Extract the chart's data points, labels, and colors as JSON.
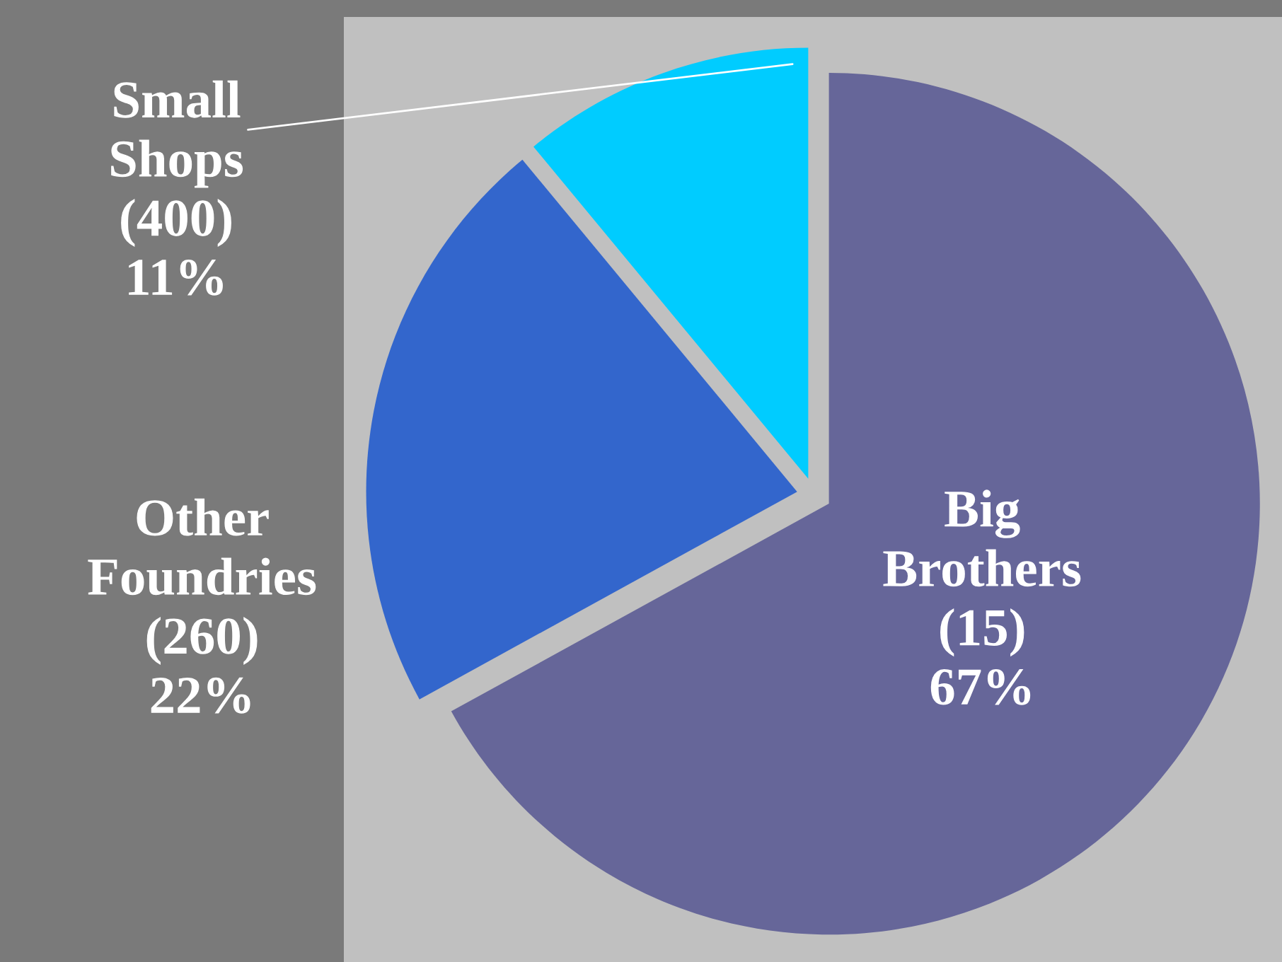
{
  "chart_data": {
    "type": "pie",
    "categories": [
      "Big Brothers",
      "Other Foundries",
      "Small Shops"
    ],
    "values": [
      67,
      22,
      11
    ],
    "colors": [
      "#666699",
      "#3366cc",
      "#00ccff"
    ],
    "value_labels": [
      "(15)\n67%",
      "(260)\n22%",
      "(400)\n11%"
    ],
    "legend": false
  }
}
